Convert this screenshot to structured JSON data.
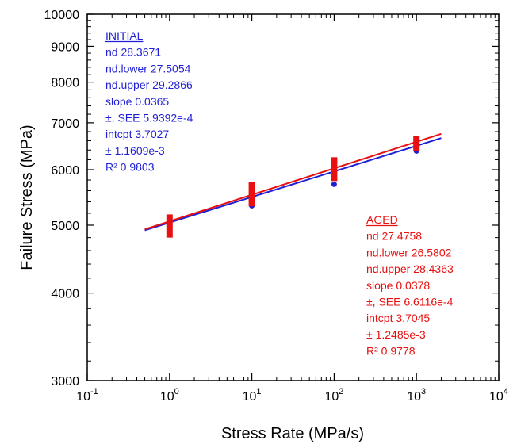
{
  "chart_data": {
    "type": "scatter",
    "xlabel": "Stress Rate (MPa/s)",
    "ylabel": "Failure Stress (MPa)",
    "x_scale": "log",
    "y_scale": "log",
    "xlim": [
      0.1,
      10000
    ],
    "ylim": [
      3000,
      10000
    ],
    "x_ticks": [
      {
        "base": "10",
        "exp": "-1",
        "value": 0.1
      },
      {
        "base": "10",
        "exp": "0",
        "value": 1
      },
      {
        "base": "10",
        "exp": "1",
        "value": 10
      },
      {
        "base": "10",
        "exp": "2",
        "value": 100
      },
      {
        "base": "10",
        "exp": "3",
        "value": 1000
      },
      {
        "base": "10",
        "exp": "4",
        "value": 10000
      }
    ],
    "y_ticks": [
      {
        "label": "3000",
        "value": 3000
      },
      {
        "label": "4000",
        "value": 4000
      },
      {
        "label": "5000",
        "value": 5000
      },
      {
        "label": "6000",
        "value": 6000
      },
      {
        "label": "7000",
        "value": 7000
      },
      {
        "label": "8000",
        "value": 8000
      },
      {
        "label": "9000",
        "value": 9000
      },
      {
        "label": "10000",
        "value": 10000
      }
    ],
    "series": [
      {
        "color": "#1f1fd6",
        "marker": "circle",
        "points": [
          {
            "x": 1,
            "y": 5000
          },
          {
            "x": 10,
            "y": 5330
          },
          {
            "x": 100,
            "y": 5720
          },
          {
            "x": 1000,
            "y": 6380
          }
        ],
        "fit": {
          "x_start": 0.5,
          "x_end": 2000,
          "slope": 0.0365,
          "intercept": 3.7027
        }
      },
      {
        "color": "#e81010",
        "marker": "bar",
        "points": [
          {
            "x": 1,
            "y_low": 4800,
            "y_high": 5180
          },
          {
            "x": 10,
            "y_low": 5320,
            "y_high": 5760
          },
          {
            "x": 100,
            "y_low": 5780,
            "y_high": 6250
          },
          {
            "x": 1000,
            "y_low": 6380,
            "y_high": 6700
          }
        ],
        "fit": {
          "x_start": 0.5,
          "x_end": 2000,
          "slope": 0.0378,
          "intercept": 3.7045
        }
      }
    ],
    "annotations": [
      {
        "color": "#1f1fd6",
        "title": "INITIAL",
        "lines": [
          "nd  28.3671",
          "nd.lower  27.5054",
          "nd.upper  29.2866",
          "slope  0.0365",
          "±, SEE  5.9392e-4",
          "intcpt  3.7027",
          "±  1.1609e-3",
          "R²  0.9803"
        ]
      },
      {
        "color": "#e81010",
        "title": "AGED",
        "lines": [
          "nd  27.4758",
          "nd.lower  26.5802",
          "nd.upper  28.4363",
          "slope  0.0378",
          "±, SEE  6.6116e-4",
          "intcpt  3.7045",
          "±  1.2485e-3",
          "R²  0.9778"
        ]
      }
    ]
  }
}
